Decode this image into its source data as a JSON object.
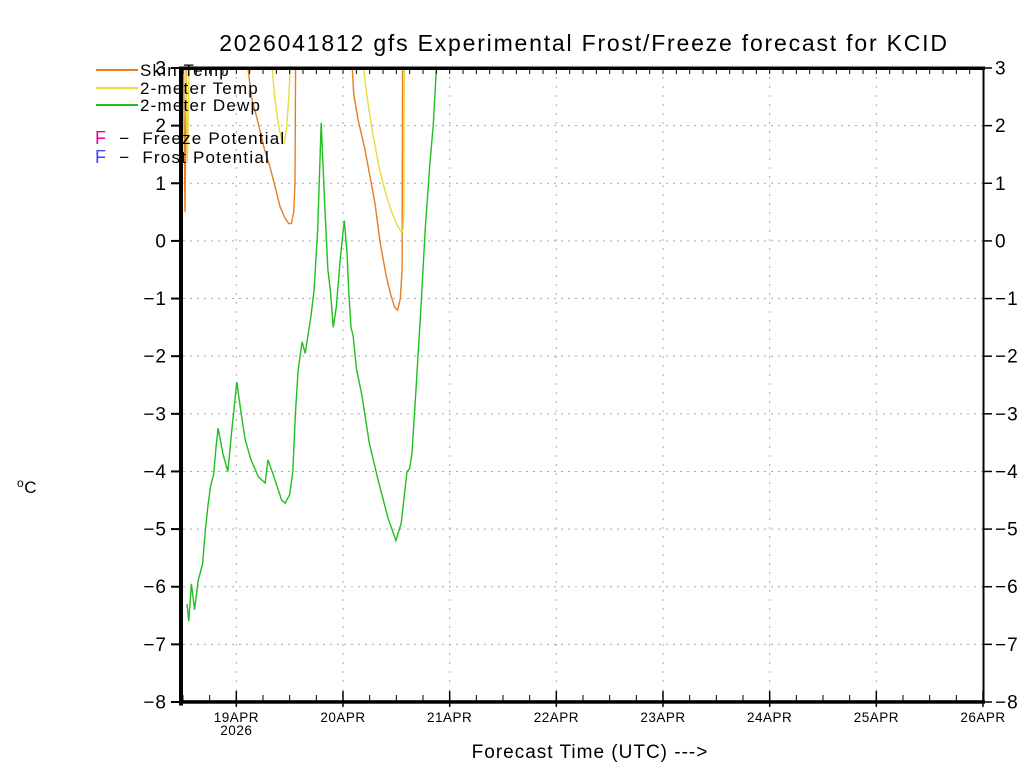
{
  "title": "2026041812 gfs Experimental Frost/Freeze forecast for KCID",
  "axes": {
    "y_unit": {
      "sup": "o",
      "main": "C"
    },
    "x_title": "Forecast Time (UTC) --->",
    "year_label": "2026"
  },
  "legend": {
    "series_items": [
      {
        "label": "Skin Temp",
        "color": "#E67E22"
      },
      {
        "label": "2-meter Temp",
        "color": "#E6DC3C"
      },
      {
        "label": "2-meter Dewp",
        "color": "#1FBF1F"
      }
    ],
    "marker_items": [
      {
        "symbol": "F",
        "dash": "−",
        "label": "Freeze Potential",
        "color": "#F00096"
      },
      {
        "symbol": "F",
        "dash": "−",
        "label": "Frost Potential",
        "color": "#3C46FF"
      }
    ]
  },
  "chart_data": {
    "type": "line",
    "title": "2026041812 gfs Experimental Frost/Freeze forecast for KCID",
    "ylabel": "°C",
    "xlabel": "Forecast Time (UTC)",
    "ylim": [
      -8,
      3
    ],
    "x_start": "2026-04-18 12Z",
    "x_span_hours": 180,
    "grid": "on",
    "y_ticks": [
      3,
      2,
      1,
      0,
      -1,
      -2,
      -3,
      -4,
      -5,
      -6,
      -7,
      -8
    ],
    "x_ticks": [
      {
        "label": "19APR",
        "hour": 12,
        "sublabel": "2026"
      },
      {
        "label": "20APR",
        "hour": 36,
        "sublabel": ""
      },
      {
        "label": "21APR",
        "hour": 60,
        "sublabel": ""
      },
      {
        "label": "22APR",
        "hour": 84,
        "sublabel": ""
      },
      {
        "label": "23APR",
        "hour": 108,
        "sublabel": ""
      },
      {
        "label": "24APR",
        "hour": 132,
        "sublabel": ""
      },
      {
        "label": "25APR",
        "hour": 156,
        "sublabel": ""
      },
      {
        "label": "26APR",
        "hour": 180,
        "sublabel": ""
      }
    ],
    "vgrid_hours": [
      12,
      36,
      60,
      84,
      108,
      132,
      156
    ],
    "hgrid_values": [
      2,
      1,
      0,
      -1,
      -2,
      -3,
      -4,
      -5,
      -6,
      -7
    ],
    "series": [
      {
        "name": "Skin Temp",
        "color": "#E67E22",
        "segments": [
          [
            [
              0.1,
              3.4
            ],
            [
              0.45,
              0.5
            ],
            [
              0.8,
              3.4
            ]
          ],
          [
            [
              14.0,
              3.4
            ],
            [
              15.4,
              2.5
            ],
            [
              16.9,
              2.05
            ],
            [
              18.3,
              1.6
            ],
            [
              19.5,
              1.3
            ],
            [
              20.7,
              0.95
            ],
            [
              21.8,
              0.6
            ],
            [
              22.9,
              0.4
            ],
            [
              23.8,
              0.3
            ],
            [
              24.4,
              0.3
            ],
            [
              24.9,
              0.5
            ],
            [
              25.2,
              1.0
            ],
            [
              25.35,
              3.4
            ]
          ],
          [
            [
              37.8,
              3.4
            ],
            [
              38.4,
              2.55
            ],
            [
              39.4,
              2.1
            ],
            [
              40.9,
              1.6
            ],
            [
              43.2,
              0.65
            ],
            [
              44.3,
              0.0
            ],
            [
              45.7,
              -0.6
            ],
            [
              46.8,
              -0.95
            ],
            [
              47.6,
              -1.15
            ],
            [
              48.3,
              -1.2
            ],
            [
              48.9,
              -1.0
            ],
            [
              49.3,
              -0.5
            ],
            [
              49.4,
              3.4
            ]
          ]
        ]
      },
      {
        "name": "2-meter Temp",
        "color": "#E6DC3C",
        "segments": [
          [
            [
              0.55,
              3.4
            ],
            [
              1.0,
              1.35
            ],
            [
              1.45,
              3.4
            ]
          ],
          [
            [
              19.6,
              3.4
            ],
            [
              20.6,
              2.5
            ],
            [
              21.5,
              2.0
            ],
            [
              22.3,
              1.72
            ],
            [
              22.8,
              1.7
            ],
            [
              23.3,
              1.95
            ],
            [
              23.9,
              2.6
            ],
            [
              24.3,
              3.4
            ]
          ],
          [
            [
              40.0,
              3.4
            ],
            [
              41.3,
              2.55
            ],
            [
              42.6,
              1.9
            ],
            [
              44.2,
              1.25
            ],
            [
              45.7,
              0.8
            ],
            [
              47.2,
              0.45
            ],
            [
              48.3,
              0.25
            ],
            [
              49.2,
              0.15
            ],
            [
              49.5,
              0.2
            ],
            [
              49.7,
              0.5
            ],
            [
              49.8,
              3.4
            ]
          ]
        ]
      },
      {
        "name": "2-meter Dewp",
        "color": "#1FBF1F",
        "segments": [
          [
            [
              0.9,
              -6.3
            ],
            [
              1.3,
              -6.6
            ],
            [
              1.9,
              -5.95
            ],
            [
              2.6,
              -6.4
            ],
            [
              3.4,
              -5.9
            ],
            [
              4.4,
              -5.6
            ],
            [
              5.0,
              -5.05
            ],
            [
              5.6,
              -4.6
            ],
            [
              6.2,
              -4.25
            ],
            [
              6.9,
              -4.05
            ],
            [
              7.4,
              -3.6
            ],
            [
              7.9,
              -3.25
            ],
            [
              9.0,
              -3.7
            ],
            [
              10.1,
              -4.0
            ],
            [
              10.9,
              -3.35
            ],
            [
              11.7,
              -2.75
            ],
            [
              12.1,
              -2.45
            ],
            [
              13.0,
              -2.95
            ],
            [
              14.0,
              -3.45
            ],
            [
              15.3,
              -3.8
            ],
            [
              17.0,
              -4.1
            ],
            [
              18.5,
              -4.2
            ],
            [
              19.1,
              -3.8
            ],
            [
              20.5,
              -4.1
            ],
            [
              22.2,
              -4.5
            ],
            [
              23.0,
              -4.55
            ],
            [
              24.0,
              -4.4
            ],
            [
              24.7,
              -4.0
            ],
            [
              25.3,
              -3.0
            ],
            [
              25.9,
              -2.25
            ],
            [
              26.8,
              -1.75
            ],
            [
              27.5,
              -1.95
            ],
            [
              28.8,
              -1.3
            ],
            [
              29.5,
              -0.85
            ],
            [
              30.3,
              0.2
            ],
            [
              31.1,
              2.05
            ],
            [
              31.9,
              0.6
            ],
            [
              32.6,
              -0.5
            ],
            [
              33.2,
              -0.9
            ],
            [
              33.8,
              -1.5
            ],
            [
              34.5,
              -1.15
            ],
            [
              35.4,
              -0.3
            ],
            [
              36.3,
              0.35
            ],
            [
              36.9,
              -0.2
            ],
            [
              37.3,
              -0.9
            ],
            [
              37.8,
              -1.5
            ],
            [
              38.3,
              -1.65
            ],
            [
              39.0,
              -2.2
            ],
            [
              40.3,
              -2.7
            ],
            [
              41.9,
              -3.5
            ],
            [
              43.9,
              -4.15
            ],
            [
              46.1,
              -4.8
            ],
            [
              47.9,
              -5.2
            ],
            [
              49.1,
              -4.9
            ],
            [
              50.4,
              -4.0
            ],
            [
              51.0,
              -3.95
            ],
            [
              51.5,
              -3.7
            ],
            [
              52.4,
              -2.6
            ],
            [
              53.5,
              -1.2
            ],
            [
              54.5,
              0.2
            ],
            [
              55.5,
              1.3
            ],
            [
              56.3,
              2.0
            ],
            [
              57.3,
              3.4
            ]
          ]
        ]
      }
    ],
    "potential_markers": [
      {
        "symbol": "F",
        "label": "Freeze Potential",
        "color": "#F00096",
        "points": []
      },
      {
        "symbol": "F",
        "label": "Frost Potential",
        "color": "#3C46FF",
        "points": []
      }
    ]
  },
  "style": {
    "grid_color": "#ABABAB",
    "axis_color": "#000000"
  }
}
